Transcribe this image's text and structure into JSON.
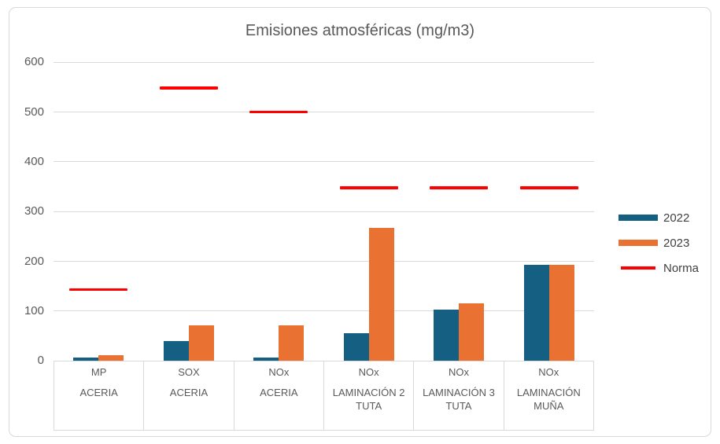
{
  "chart_data": {
    "type": "bar",
    "title": "Emisiones atmosféricas (mg/m3)",
    "categories": [
      {
        "label": "MP",
        "group": "ACERIA"
      },
      {
        "label": "SOX",
        "group": "ACERIA"
      },
      {
        "label": "NOx",
        "group": "ACERIA"
      },
      {
        "label": "NOx",
        "group": "LAMINACIÓN 2 TUTA"
      },
      {
        "label": "NOx",
        "group": "LAMINACIÓN 3 TUTA"
      },
      {
        "label": "NOx",
        "group": "LAMINACIÓN MUÑA"
      }
    ],
    "series": [
      {
        "name": "2022",
        "type": "bar",
        "color": "#156082",
        "values": [
          7,
          40,
          7,
          56,
          103,
          193
        ]
      },
      {
        "name": "2023",
        "type": "bar",
        "color": "#E97132",
        "values": [
          12,
          72,
          72,
          268,
          116,
          193
        ]
      },
      {
        "name": "Norma",
        "type": "line",
        "color": "#FF0000",
        "values": [
          143,
          548,
          500,
          348,
          348,
          348
        ]
      }
    ],
    "y_axis": {
      "min": 0,
      "max": 600,
      "step": 100,
      "tick_labels": [
        "0",
        "100",
        "200",
        "300",
        "400",
        "500",
        "600"
      ]
    },
    "legend": {
      "position": "right",
      "entries": [
        "2022",
        "2023",
        "Norma"
      ]
    },
    "grid": true,
    "colors": {
      "grid": "#D9D9D9",
      "axis_text": "#595959",
      "legend_text": "#404040",
      "border": "#D9D9D9",
      "background": "#FFFFFF"
    }
  }
}
